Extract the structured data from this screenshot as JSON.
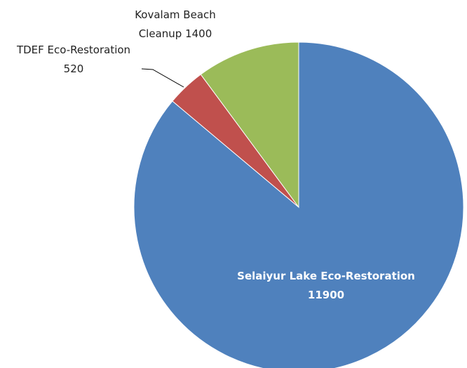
{
  "chart_data": {
    "type": "pie",
    "categories": [
      "Selaiyur Lake Eco-Restoration",
      "TDEF Eco-Restoration",
      "Kovalam Beach Cleanup"
    ],
    "values": [
      11900,
      520,
      1400
    ],
    "colors": [
      "#4f81bd",
      "#c0504d",
      "#9bbb59"
    ]
  }
}
